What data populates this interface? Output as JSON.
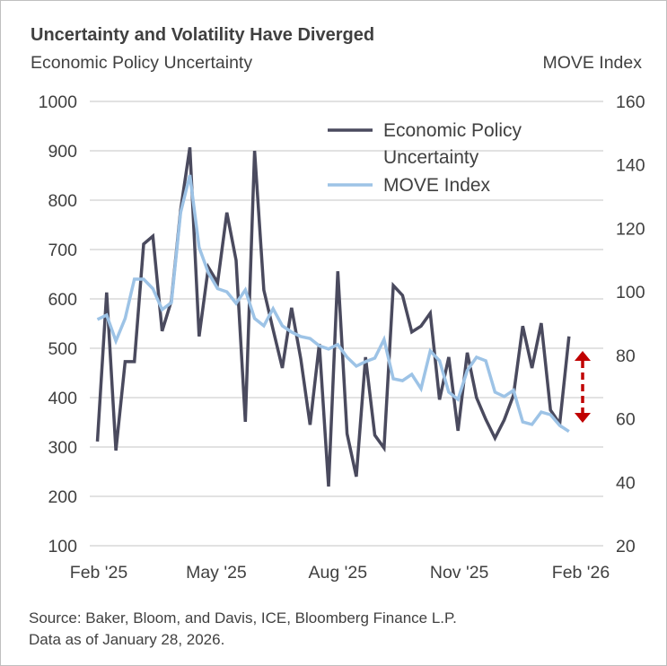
{
  "chart_data": {
    "type": "line",
    "title": "Uncertainty and Volatility Have Diverged",
    "ylabel": "Economic Policy Uncertainty",
    "y2label": "MOVE Index",
    "ylim": [
      100,
      1000
    ],
    "y2lim": [
      20,
      160
    ],
    "yticks": [
      "1000",
      "900",
      "800",
      "700",
      "600",
      "500",
      "400",
      "300",
      "200",
      "100"
    ],
    "y2ticks": [
      "160",
      "140",
      "120",
      "100",
      "80",
      "60",
      "40",
      "20"
    ],
    "xticks": [
      {
        "label": "Feb '25",
        "date": "2025-02-01"
      },
      {
        "label": "May '25",
        "date": "2025-05-01"
      },
      {
        "label": "Aug '25",
        "date": "2025-08-01"
      },
      {
        "label": "Nov '25",
        "date": "2025-11-01"
      },
      {
        "label": "Feb '26",
        "date": "2026-02-01"
      }
    ],
    "grid": true,
    "legend_position": "top-right",
    "x": [
      "2025-01-31",
      "2025-02-07",
      "2025-02-14",
      "2025-02-21",
      "2025-02-28",
      "2025-03-07",
      "2025-03-14",
      "2025-03-21",
      "2025-03-28",
      "2025-04-04",
      "2025-04-11",
      "2025-04-18",
      "2025-04-25",
      "2025-05-02",
      "2025-05-09",
      "2025-05-16",
      "2025-05-23",
      "2025-05-30",
      "2025-06-06",
      "2025-06-13",
      "2025-06-20",
      "2025-06-27",
      "2025-07-04",
      "2025-07-11",
      "2025-07-18",
      "2025-07-25",
      "2025-08-01",
      "2025-08-08",
      "2025-08-15",
      "2025-08-22",
      "2025-08-29",
      "2025-09-05",
      "2025-09-12",
      "2025-09-19",
      "2025-09-26",
      "2025-10-03",
      "2025-10-10",
      "2025-10-17",
      "2025-10-24",
      "2025-10-31",
      "2025-11-07",
      "2025-11-14",
      "2025-11-21",
      "2025-11-28",
      "2025-12-05",
      "2025-12-12",
      "2025-12-19",
      "2025-12-26",
      "2026-01-02",
      "2026-01-09",
      "2026-01-16",
      "2026-01-23"
    ],
    "series": [
      {
        "name": "Economic Policy Uncertainty",
        "axis": "left",
        "color": "#4a4a5e",
        "values": [
          311,
          613,
          293,
          473,
          473,
          711,
          727,
          535,
          596,
          780,
          907,
          524,
          664,
          633,
          775,
          678,
          351,
          900,
          618,
          538,
          460,
          582,
          478,
          345,
          509,
          220,
          656,
          327,
          240,
          482,
          324,
          298,
          627,
          607,
          533,
          545,
          571,
          396,
          482,
          333,
          491,
          400,
          356,
          318,
          355,
          405,
          545,
          460,
          551,
          375,
          347,
          524
        ]
      },
      {
        "name": "MOVE Index",
        "axis": "right",
        "color": "#9dc3e6",
        "values": [
          91.3,
          92.7,
          84.5,
          91.6,
          104,
          104,
          101,
          94.4,
          96.6,
          125,
          136.8,
          114,
          106,
          101,
          100,
          96.4,
          100.6,
          91.6,
          89.3,
          94.7,
          89.3,
          87.3,
          85.9,
          85.3,
          83,
          82,
          83.4,
          79.4,
          76.6,
          78,
          79.1,
          85,
          72.6,
          72,
          74,
          69.5,
          81.4,
          78.3,
          68.4,
          66.1,
          75.2,
          79.4,
          78.3,
          68.4,
          67,
          69,
          59,
          58.2,
          62.1,
          61.3,
          57.9,
          56
        ]
      }
    ],
    "legend": [
      {
        "label_line1": "Economic Policy",
        "label_line2": "Uncertainty"
      },
      {
        "label_line1": "MOVE Index"
      }
    ],
    "annotation": {
      "type": "double-arrow-dashed",
      "color": "#c00000"
    }
  },
  "source": "Source: Baker, Bloom, and Davis, ICE, Bloomberg Finance L.P.",
  "asof": "Data as of January 28, 2026."
}
